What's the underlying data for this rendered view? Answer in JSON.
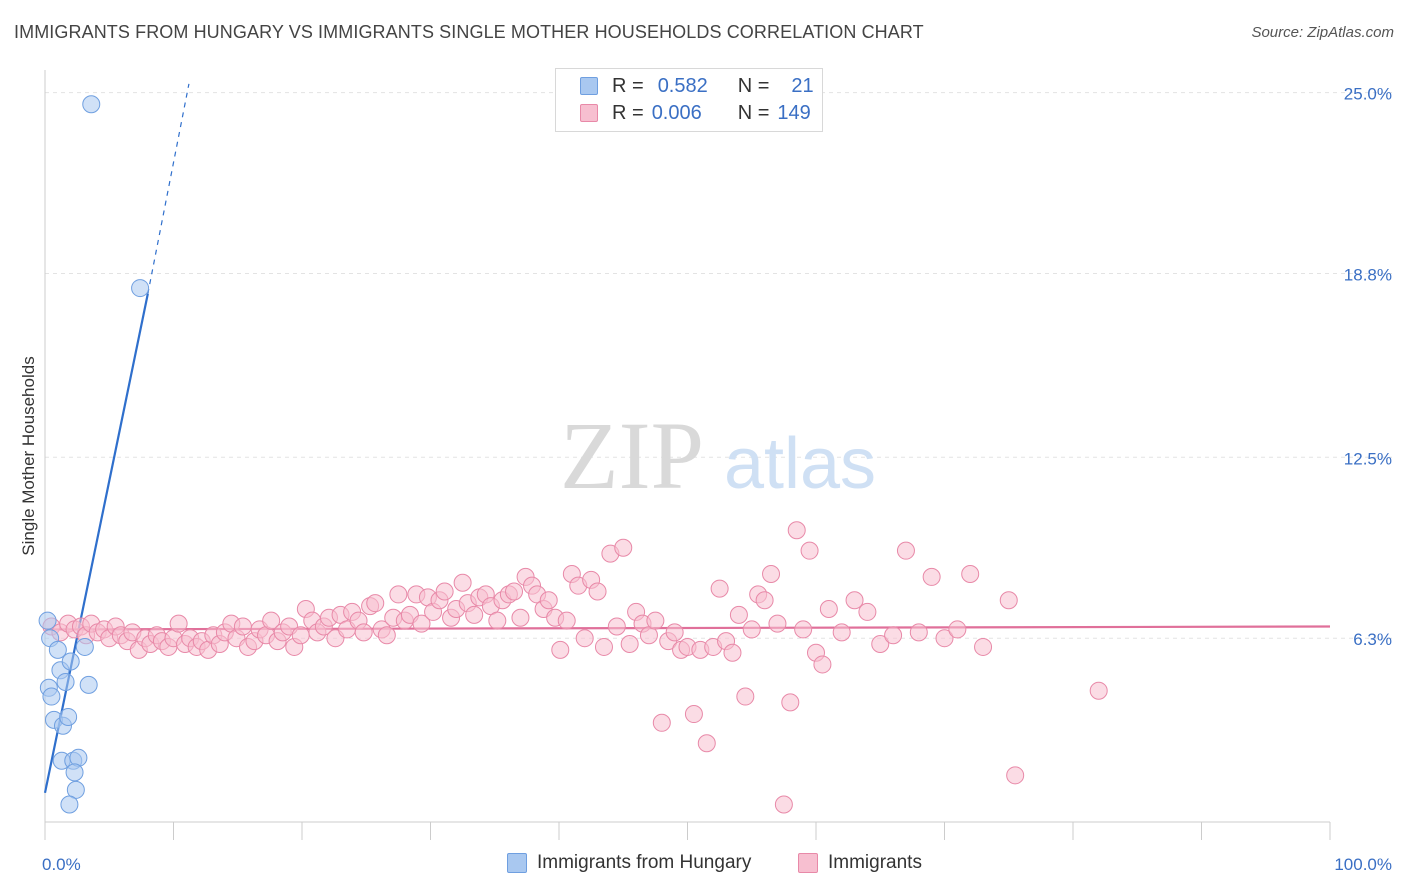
{
  "title": "IMMIGRANTS FROM HUNGARY VS IMMIGRANTS SINGLE MOTHER HOUSEHOLDS CORRELATION CHART",
  "source": "Source: ZipAtlas.com",
  "watermark": {
    "zip": "ZIP",
    "atlas": "atlas"
  },
  "legend": {
    "rows": [
      {
        "r_label": "R =",
        "r_value": "0.582",
        "n_label": "N =",
        "n_value": "21",
        "color": "#a9c8f0",
        "border": "#6f9fe0"
      },
      {
        "r_label": "R =",
        "r_value": "0.006",
        "n_label": "N =",
        "n_value": "149",
        "color": "#f7bfd0",
        "border": "#e889a8"
      }
    ]
  },
  "bottom_legend": [
    {
      "label": "Immigrants from Hungary",
      "color": "#a9c8f0",
      "border": "#6f9fe0"
    },
    {
      "label": "Immigrants",
      "color": "#f7bfd0",
      "border": "#e889a8"
    }
  ],
  "chart_data": {
    "type": "scatter",
    "title": "IMMIGRANTS FROM HUNGARY VS IMMIGRANTS SINGLE MOTHER HOUSEHOLDS CORRELATION CHART",
    "xlabel": "",
    "ylabel": "Single Mother Households",
    "xlim": [
      0,
      100
    ],
    "ylim": [
      0,
      25.5
    ],
    "x_tick_labels": [
      "0.0%",
      "100.0%"
    ],
    "y_ticks": [
      6.3,
      12.5,
      18.8,
      25.0
    ],
    "y_tick_labels": [
      "6.3%",
      "12.5%",
      "18.8%",
      "25.0%"
    ],
    "grid": true,
    "series": [
      {
        "name": "Immigrants from Hungary",
        "color": "#a9c8f0",
        "stroke": "#6f9fe0",
        "trend_color": "#2f6fcc",
        "trend": {
          "x0": 0.0,
          "y0": 1.0,
          "x1": 8.0,
          "y1": 18.1,
          "dash_to_x": 11.2,
          "dash_to_y": 25.3
        },
        "points": [
          [
            0.2,
            6.9
          ],
          [
            0.4,
            6.3
          ],
          [
            0.3,
            4.6
          ],
          [
            0.5,
            4.3
          ],
          [
            0.7,
            3.5
          ],
          [
            1.0,
            5.9
          ],
          [
            1.2,
            5.2
          ],
          [
            1.4,
            3.3
          ],
          [
            1.6,
            4.8
          ],
          [
            1.8,
            3.6
          ],
          [
            2.0,
            5.5
          ],
          [
            1.3,
            2.1
          ],
          [
            2.2,
            2.1
          ],
          [
            2.6,
            2.2
          ],
          [
            2.3,
            1.7
          ],
          [
            2.4,
            1.1
          ],
          [
            1.9,
            0.6
          ],
          [
            3.1,
            6.0
          ],
          [
            3.4,
            4.7
          ],
          [
            3.6,
            24.6
          ],
          [
            7.4,
            18.3
          ]
        ]
      },
      {
        "name": "Immigrants",
        "color": "#f7bfd0",
        "stroke": "#e889a8",
        "trend_color": "#e0709a",
        "trend": {
          "x0": 0.0,
          "y0": 6.6,
          "x1": 100.0,
          "y1": 6.7
        },
        "points": [
          [
            0.5,
            6.7
          ],
          [
            1.2,
            6.5
          ],
          [
            1.8,
            6.8
          ],
          [
            2.3,
            6.6
          ],
          [
            2.8,
            6.7
          ],
          [
            3.2,
            6.4
          ],
          [
            3.6,
            6.8
          ],
          [
            4.1,
            6.5
          ],
          [
            4.6,
            6.6
          ],
          [
            5.0,
            6.3
          ],
          [
            5.5,
            6.7
          ],
          [
            5.9,
            6.4
          ],
          [
            6.4,
            6.2
          ],
          [
            6.8,
            6.5
          ],
          [
            7.3,
            5.9
          ],
          [
            7.8,
            6.3
          ],
          [
            8.2,
            6.1
          ],
          [
            8.7,
            6.4
          ],
          [
            9.1,
            6.2
          ],
          [
            9.6,
            6.0
          ],
          [
            10.0,
            6.3
          ],
          [
            10.4,
            6.8
          ],
          [
            10.9,
            6.1
          ],
          [
            11.3,
            6.3
          ],
          [
            11.8,
            6.0
          ],
          [
            12.2,
            6.2
          ],
          [
            12.7,
            5.9
          ],
          [
            13.1,
            6.4
          ],
          [
            13.6,
            6.1
          ],
          [
            14.0,
            6.5
          ],
          [
            14.5,
            6.8
          ],
          [
            14.9,
            6.3
          ],
          [
            15.4,
            6.7
          ],
          [
            15.8,
            6.0
          ],
          [
            16.3,
            6.2
          ],
          [
            16.7,
            6.6
          ],
          [
            17.2,
            6.4
          ],
          [
            17.6,
            6.9
          ],
          [
            18.1,
            6.2
          ],
          [
            18.5,
            6.5
          ],
          [
            19.0,
            6.7
          ],
          [
            19.4,
            6.0
          ],
          [
            19.9,
            6.4
          ],
          [
            20.3,
            7.3
          ],
          [
            20.8,
            6.9
          ],
          [
            21.2,
            6.5
          ],
          [
            21.7,
            6.7
          ],
          [
            22.1,
            7.0
          ],
          [
            22.6,
            6.3
          ],
          [
            23.0,
            7.1
          ],
          [
            23.5,
            6.6
          ],
          [
            23.9,
            7.2
          ],
          [
            24.4,
            6.9
          ],
          [
            24.8,
            6.5
          ],
          [
            25.3,
            7.4
          ],
          [
            25.7,
            7.5
          ],
          [
            26.2,
            6.6
          ],
          [
            26.6,
            6.4
          ],
          [
            27.1,
            7.0
          ],
          [
            27.5,
            7.8
          ],
          [
            28.0,
            6.9
          ],
          [
            28.4,
            7.1
          ],
          [
            28.9,
            7.8
          ],
          [
            29.3,
            6.8
          ],
          [
            29.8,
            7.7
          ],
          [
            30.2,
            7.2
          ],
          [
            30.7,
            7.6
          ],
          [
            31.1,
            7.9
          ],
          [
            31.6,
            7.0
          ],
          [
            32.0,
            7.3
          ],
          [
            32.5,
            8.2
          ],
          [
            32.9,
            7.5
          ],
          [
            33.4,
            7.1
          ],
          [
            33.8,
            7.7
          ],
          [
            34.3,
            7.8
          ],
          [
            34.7,
            7.4
          ],
          [
            35.2,
            6.9
          ],
          [
            35.6,
            7.6
          ],
          [
            36.1,
            7.8
          ],
          [
            36.5,
            7.9
          ],
          [
            37.0,
            7.0
          ],
          [
            37.4,
            8.4
          ],
          [
            37.9,
            8.1
          ],
          [
            38.3,
            7.8
          ],
          [
            38.8,
            7.3
          ],
          [
            39.2,
            7.6
          ],
          [
            39.7,
            7.0
          ],
          [
            40.1,
            5.9
          ],
          [
            40.6,
            6.9
          ],
          [
            41.0,
            8.5
          ],
          [
            41.5,
            8.1
          ],
          [
            42.0,
            6.3
          ],
          [
            42.5,
            8.3
          ],
          [
            43.0,
            7.9
          ],
          [
            43.5,
            6.0
          ],
          [
            44.0,
            9.2
          ],
          [
            44.5,
            6.7
          ],
          [
            45.0,
            9.4
          ],
          [
            45.5,
            6.1
          ],
          [
            46.0,
            7.2
          ],
          [
            46.5,
            6.8
          ],
          [
            47.0,
            6.4
          ],
          [
            47.5,
            6.9
          ],
          [
            48.0,
            3.4
          ],
          [
            48.5,
            6.2
          ],
          [
            49.0,
            6.5
          ],
          [
            49.5,
            5.9
          ],
          [
            50.0,
            6.0
          ],
          [
            50.5,
            3.7
          ],
          [
            51.0,
            5.9
          ],
          [
            51.5,
            2.7
          ],
          [
            52.0,
            6.0
          ],
          [
            52.5,
            8.0
          ],
          [
            53.0,
            6.2
          ],
          [
            53.5,
            5.8
          ],
          [
            54.0,
            7.1
          ],
          [
            54.5,
            4.3
          ],
          [
            55.0,
            6.6
          ],
          [
            55.5,
            7.8
          ],
          [
            56.0,
            7.6
          ],
          [
            56.5,
            8.5
          ],
          [
            57.0,
            6.8
          ],
          [
            57.5,
            0.6
          ],
          [
            58.0,
            4.1
          ],
          [
            58.5,
            10.0
          ],
          [
            59.0,
            6.6
          ],
          [
            59.5,
            9.3
          ],
          [
            60.0,
            5.8
          ],
          [
            60.5,
            5.4
          ],
          [
            61.0,
            7.3
          ],
          [
            62.0,
            6.5
          ],
          [
            63.0,
            7.6
          ],
          [
            64.0,
            7.2
          ],
          [
            65.0,
            6.1
          ],
          [
            66.0,
            6.4
          ],
          [
            67.0,
            9.3
          ],
          [
            68.0,
            6.5
          ],
          [
            69.0,
            8.4
          ],
          [
            70.0,
            6.3
          ],
          [
            71.0,
            6.6
          ],
          [
            72.0,
            8.5
          ],
          [
            73.0,
            6.0
          ],
          [
            75.0,
            7.6
          ],
          [
            82.0,
            4.5
          ],
          [
            75.5,
            1.6
          ]
        ]
      }
    ]
  }
}
